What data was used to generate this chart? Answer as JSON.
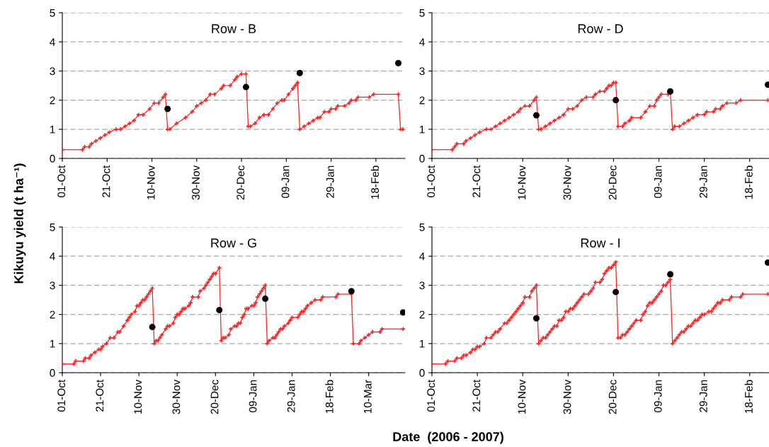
{
  "chart_data": [
    {
      "type": "line",
      "title": "Row - B",
      "ylabel": "Kikuyu yield (t ha⁻¹)",
      "xlim": [
        "2006-10-01",
        "2007-03-03"
      ],
      "ylim": [
        0,
        5
      ],
      "yticks": [
        0,
        1,
        2,
        3,
        4,
        5
      ],
      "grid": "y",
      "xticks": [
        {
          "value": "2006-10-01",
          "label": "01-Oct"
        },
        {
          "value": "2006-10-21",
          "label": "21-Oct"
        },
        {
          "value": "2006-11-10",
          "label": "10-Nov"
        },
        {
          "value": "2006-11-30",
          "label": "30-Nov"
        },
        {
          "value": "2006-12-20",
          "label": "20-Dec"
        },
        {
          "value": "2007-01-09",
          "label": "09-Jan"
        },
        {
          "value": "2007-01-29",
          "label": "29-Jan"
        },
        {
          "value": "2007-02-18",
          "label": "18-Feb"
        }
      ],
      "series": [
        {
          "color": "#ff2020",
          "marker": "cross",
          "x": [
            "2006-10-01",
            "2006-10-10",
            "2006-10-11",
            "2006-10-13",
            "2006-10-14",
            "2006-10-16",
            "2006-10-18",
            "2006-10-20",
            "2006-10-22",
            "2006-10-25",
            "2006-10-27",
            "2006-10-29",
            "2006-10-31",
            "2006-11-02",
            "2006-11-04",
            "2006-11-06",
            "2006-11-09",
            "2006-11-11",
            "2006-11-13",
            "2006-11-15",
            "2006-11-16",
            "2006-11-17",
            "2006-11-18",
            "2006-11-21",
            "2006-11-25",
            "2006-11-28",
            "2006-11-30",
            "2006-12-02",
            "2006-12-04",
            "2006-12-06",
            "2006-12-08",
            "2006-12-11",
            "2006-12-12",
            "2006-12-15",
            "2006-12-17",
            "2006-12-18",
            "2006-12-20",
            "2006-12-22",
            "2006-12-23",
            "2006-12-24",
            "2006-12-26",
            "2006-12-28",
            "2006-12-30",
            "2007-01-01",
            "2007-01-03",
            "2007-01-05",
            "2007-01-07",
            "2007-01-08",
            "2007-01-10",
            "2007-01-12",
            "2007-01-13",
            "2007-01-14",
            "2007-01-15",
            "2007-01-17",
            "2007-01-19",
            "2007-01-21",
            "2007-01-23",
            "2007-01-24",
            "2007-01-26",
            "2007-01-28",
            "2007-01-29",
            "2007-01-31",
            "2007-02-01",
            "2007-02-04",
            "2007-02-06",
            "2007-02-07",
            "2007-02-09",
            "2007-02-10",
            "2007-02-15",
            "2007-02-17",
            "2007-02-28",
            "2007-03-01",
            "2007-03-02"
          ],
          "values": [
            0.3,
            0.3,
            0.4,
            0.4,
            0.5,
            0.6,
            0.7,
            0.8,
            0.9,
            1.0,
            1.0,
            1.1,
            1.2,
            1.3,
            1.5,
            1.5,
            1.7,
            1.9,
            1.9,
            2.1,
            2.2,
            1.0,
            1.0,
            1.2,
            1.4,
            1.6,
            1.8,
            1.9,
            2.0,
            2.2,
            2.2,
            2.4,
            2.5,
            2.5,
            2.7,
            2.8,
            2.9,
            2.9,
            1.1,
            1.1,
            1.2,
            1.4,
            1.5,
            1.5,
            1.7,
            1.9,
            2.0,
            2.0,
            2.2,
            2.4,
            2.5,
            2.6,
            1.0,
            1.1,
            1.2,
            1.3,
            1.4,
            1.4,
            1.6,
            1.6,
            1.7,
            1.7,
            1.8,
            1.8,
            1.9,
            2.0,
            2.0,
            2.1,
            2.1,
            2.2,
            2.2,
            1.0,
            1.0
          ]
        },
        {
          "type": "scatter",
          "color": "#000000",
          "marker": "circle",
          "x": [
            "2006-11-17",
            "2006-12-22",
            "2007-01-15",
            "2007-02-28"
          ],
          "values": [
            1.7,
            2.45,
            2.93,
            3.27
          ]
        }
      ]
    },
    {
      "type": "line",
      "title": "Row - D",
      "xlim": [
        "2006-10-01",
        "2007-02-26T12:00"
      ],
      "ylim": [
        0,
        5
      ],
      "yticks": [
        0,
        1,
        2,
        3,
        4,
        5
      ],
      "grid": "y",
      "xticks": [
        {
          "value": "2006-10-01",
          "label": "01-Oct"
        },
        {
          "value": "2006-10-21",
          "label": "21-Oct"
        },
        {
          "value": "2006-11-10",
          "label": "10-Nov"
        },
        {
          "value": "2006-11-30",
          "label": "30-Nov"
        },
        {
          "value": "2006-12-20",
          "label": "20-Dec"
        },
        {
          "value": "2007-01-09",
          "label": "09-Jan"
        },
        {
          "value": "2007-01-29",
          "label": "29-Jan"
        },
        {
          "value": "2007-02-18",
          "label": "18-Feb"
        }
      ],
      "series": [
        {
          "color": "#ff2020",
          "marker": "cross",
          "x": [
            "2006-10-01",
            "2006-10-10",
            "2006-10-11",
            "2006-10-12",
            "2006-10-15",
            "2006-10-16",
            "2006-10-18",
            "2006-10-20",
            "2006-10-22",
            "2006-10-25",
            "2006-10-27",
            "2006-10-29",
            "2006-10-31",
            "2006-11-02",
            "2006-11-04",
            "2006-11-06",
            "2006-11-08",
            "2006-11-09",
            "2006-11-11",
            "2006-11-13",
            "2006-11-15",
            "2006-11-16",
            "2006-11-17",
            "2006-11-18",
            "2006-11-20",
            "2006-11-22",
            "2006-11-24",
            "2006-11-26",
            "2006-11-28",
            "2006-11-30",
            "2006-12-02",
            "2006-12-04",
            "2006-12-06",
            "2006-12-08",
            "2006-12-11",
            "2006-12-12",
            "2006-12-14",
            "2006-12-16",
            "2006-12-17",
            "2006-12-18",
            "2006-12-19",
            "2006-12-20",
            "2006-12-21",
            "2006-12-22",
            "2006-12-24",
            "2006-12-25",
            "2006-12-27",
            "2006-12-28",
            "2007-01-01",
            "2007-01-03",
            "2007-01-05",
            "2007-01-07",
            "2007-01-08",
            "2007-01-09",
            "2007-01-10",
            "2007-01-13",
            "2007-01-14",
            "2007-01-15",
            "2007-01-16",
            "2007-01-18",
            "2007-01-20",
            "2007-01-22",
            "2007-01-24",
            "2007-01-26",
            "2007-01-29",
            "2007-01-30",
            "2007-02-02",
            "2007-02-03",
            "2007-02-05",
            "2007-02-06",
            "2007-02-08",
            "2007-02-12",
            "2007-02-14",
            "2007-02-26"
          ],
          "values": [
            0.3,
            0.3,
            0.4,
            0.5,
            0.5,
            0.6,
            0.7,
            0.8,
            0.9,
            1.0,
            1.0,
            1.1,
            1.2,
            1.3,
            1.4,
            1.5,
            1.6,
            1.7,
            1.8,
            1.8,
            2.0,
            2.1,
            1.0,
            1.0,
            1.1,
            1.2,
            1.3,
            1.4,
            1.5,
            1.7,
            1.7,
            1.8,
            2.0,
            2.1,
            2.1,
            2.2,
            2.3,
            2.3,
            2.4,
            2.5,
            2.5,
            2.6,
            2.6,
            1.1,
            1.1,
            1.2,
            1.3,
            1.4,
            1.4,
            1.6,
            1.8,
            1.8,
            2.0,
            2.1,
            2.2,
            2.2,
            2.3,
            1.0,
            1.1,
            1.1,
            1.2,
            1.3,
            1.4,
            1.5,
            1.5,
            1.6,
            1.6,
            1.7,
            1.7,
            1.8,
            1.9,
            1.9,
            2.0,
            2.0
          ]
        },
        {
          "type": "scatter",
          "color": "#000000",
          "marker": "circle",
          "x": [
            "2006-11-16",
            "2006-12-21",
            "2007-01-14",
            "2007-02-26"
          ],
          "values": [
            1.48,
            2.0,
            2.3,
            2.53
          ]
        }
      ]
    },
    {
      "type": "line",
      "title": "Row - G",
      "xlabel": "Date  (2006 - 2007)",
      "xlim": [
        "2006-10-01",
        "2007-03-29"
      ],
      "ylim": [
        0,
        5
      ],
      "yticks": [
        0,
        1,
        2,
        3,
        4,
        5
      ],
      "grid": "y",
      "xticks": [
        {
          "value": "2006-10-01",
          "label": "01-Oct"
        },
        {
          "value": "2006-10-21",
          "label": "21-Oct"
        },
        {
          "value": "2006-11-10",
          "label": "10-Nov"
        },
        {
          "value": "2006-11-30",
          "label": "30-Nov"
        },
        {
          "value": "2006-12-20",
          "label": "20-Dec"
        },
        {
          "value": "2007-01-09",
          "label": "09-Jan"
        },
        {
          "value": "2007-01-29",
          "label": "29-Jan"
        },
        {
          "value": "2007-02-18",
          "label": "18-Feb"
        },
        {
          "value": "2007-03-10",
          "label": "10-Mar"
        }
      ],
      "series": [
        {
          "color": "#ff2020",
          "marker": "cross",
          "x": [
            "2006-10-01",
            "2006-10-07",
            "2006-10-08",
            "2006-10-12",
            "2006-10-13",
            "2006-10-15",
            "2006-10-16",
            "2006-10-18",
            "2006-10-20",
            "2006-10-21",
            "2006-10-22",
            "2006-10-24",
            "2006-10-26",
            "2006-10-28",
            "2006-10-30",
            "2006-10-31",
            "2006-11-02",
            "2006-11-04",
            "2006-11-05",
            "2006-11-06",
            "2006-11-08",
            "2006-11-09",
            "2006-11-10",
            "2006-11-11",
            "2006-11-12",
            "2006-11-13",
            "2006-11-14",
            "2006-11-15",
            "2006-11-16",
            "2006-11-17",
            "2006-11-18",
            "2006-11-19",
            "2006-11-20",
            "2006-11-21",
            "2006-11-22",
            "2006-11-24",
            "2006-11-25",
            "2006-11-26",
            "2006-11-28",
            "2006-11-29",
            "2006-11-30",
            "2006-12-01",
            "2006-12-02",
            "2006-12-03",
            "2006-12-04",
            "2006-12-06",
            "2006-12-07",
            "2006-12-08",
            "2006-12-11",
            "2006-12-12",
            "2006-12-14",
            "2006-12-15",
            "2006-12-16",
            "2006-12-17",
            "2006-12-18",
            "2006-12-19",
            "2006-12-20",
            "2006-12-22",
            "2006-12-23",
            "2006-12-24",
            "2006-12-25",
            "2006-12-27",
            "2006-12-28",
            "2006-12-30",
            "2006-12-31",
            "2007-01-01",
            "2007-01-02",
            "2007-01-03",
            "2007-01-04",
            "2007-01-05",
            "2007-01-06",
            "2007-01-08",
            "2007-01-09",
            "2007-01-10",
            "2007-01-11",
            "2007-01-12",
            "2007-01-13",
            "2007-01-14",
            "2007-01-15",
            "2007-01-16",
            "2007-01-17",
            "2007-01-19",
            "2007-01-20",
            "2007-01-21",
            "2007-01-22",
            "2007-01-23",
            "2007-01-24",
            "2007-01-25",
            "2007-01-27",
            "2007-01-28",
            "2007-01-29",
            "2007-02-01",
            "2007-02-02",
            "2007-02-03",
            "2007-02-04",
            "2007-02-05",
            "2007-02-06",
            "2007-02-08",
            "2007-02-10",
            "2007-02-13",
            "2007-02-14",
            "2007-02-21",
            "2007-02-22",
            "2007-03-01",
            "2007-03-02",
            "2007-03-05",
            "2007-03-06",
            "2007-03-08",
            "2007-03-10",
            "2007-03-12",
            "2007-03-16",
            "2007-03-17",
            "2007-03-28"
          ],
          "values": [
            0.3,
            0.3,
            0.4,
            0.4,
            0.5,
            0.5,
            0.6,
            0.7,
            0.8,
            0.8,
            0.9,
            1.0,
            1.2,
            1.2,
            1.4,
            1.4,
            1.6,
            1.8,
            1.9,
            2.0,
            2.1,
            2.3,
            2.3,
            2.4,
            2.5,
            2.5,
            2.6,
            2.7,
            2.8,
            2.9,
            1.0,
            1.1,
            1.1,
            1.2,
            1.3,
            1.5,
            1.6,
            1.6,
            1.7,
            1.9,
            2.0,
            2.0,
            2.1,
            2.2,
            2.2,
            2.3,
            2.4,
            2.6,
            2.6,
            2.8,
            2.9,
            3.0,
            3.1,
            3.2,
            3.3,
            3.4,
            3.4,
            3.6,
            1.1,
            1.2,
            1.2,
            1.3,
            1.5,
            1.6,
            1.6,
            1.7,
            1.7,
            1.9,
            2.0,
            2.2,
            2.2,
            2.3,
            2.3,
            2.4,
            2.6,
            2.7,
            2.8,
            2.9,
            3.0,
            1.0,
            1.1,
            1.2,
            1.2,
            1.3,
            1.4,
            1.5,
            1.5,
            1.6,
            1.7,
            1.8,
            1.9,
            1.9,
            2.0,
            2.1,
            2.1,
            2.2,
            2.3,
            2.4,
            2.5,
            2.5,
            2.6,
            2.6,
            2.7,
            2.7,
            1.0,
            1.0,
            1.1,
            1.2,
            1.3,
            1.4,
            1.4,
            1.5,
            1.5
          ]
        },
        {
          "type": "scatter",
          "color": "#000000",
          "marker": "circle",
          "x": [
            "2006-11-17",
            "2006-12-22",
            "2007-01-15",
            "2007-03-01",
            "2007-03-28"
          ],
          "values": [
            1.57,
            2.15,
            2.54,
            2.8,
            2.07
          ]
        }
      ]
    },
    {
      "type": "line",
      "title": "Row - I",
      "xlim": [
        "2006-10-01",
        "2007-02-26T12:00"
      ],
      "ylim": [
        0,
        5
      ],
      "yticks": [
        0,
        1,
        2,
        3,
        4,
        5
      ],
      "grid": "y",
      "xticks": [
        {
          "value": "2006-10-01",
          "label": "01-Oct"
        },
        {
          "value": "2006-10-21",
          "label": "21-Oct"
        },
        {
          "value": "2006-11-10",
          "label": "10-Nov"
        },
        {
          "value": "2006-11-30",
          "label": "30-Nov"
        },
        {
          "value": "2006-12-20",
          "label": "20-Dec"
        },
        {
          "value": "2007-01-09",
          "label": "09-Jan"
        },
        {
          "value": "2007-01-29",
          "label": "29-Jan"
        },
        {
          "value": "2007-02-18",
          "label": "18-Feb"
        }
      ],
      "series": [
        {
          "color": "#ff2020",
          "marker": "cross",
          "x": [
            "2006-10-01",
            "2006-10-07",
            "2006-10-08",
            "2006-10-11",
            "2006-10-12",
            "2006-10-14",
            "2006-10-15",
            "2006-10-16",
            "2006-10-18",
            "2006-10-19",
            "2006-10-20",
            "2006-10-21",
            "2006-10-22",
            "2006-10-24",
            "2006-10-25",
            "2006-10-27",
            "2006-10-28",
            "2006-10-29",
            "2006-10-30",
            "2006-10-31",
            "2006-11-02",
            "2006-11-03",
            "2006-11-04",
            "2006-11-05",
            "2006-11-06",
            "2006-11-07",
            "2006-11-08",
            "2006-11-09",
            "2006-11-10",
            "2006-11-11",
            "2006-11-13",
            "2006-11-14",
            "2006-11-15",
            "2006-11-16",
            "2006-11-17",
            "2006-11-18",
            "2006-11-19",
            "2006-11-20",
            "2006-11-21",
            "2006-11-22",
            "2006-11-23",
            "2006-11-24",
            "2006-11-25",
            "2006-11-26",
            "2006-11-27",
            "2006-11-28",
            "2006-11-29",
            "2006-11-30",
            "2006-12-01",
            "2006-12-02",
            "2006-12-03",
            "2006-12-04",
            "2006-12-05",
            "2006-12-06",
            "2006-12-07",
            "2006-12-09",
            "2006-12-10",
            "2006-12-11",
            "2006-12-12",
            "2006-12-14",
            "2006-12-15",
            "2006-12-16",
            "2006-12-17",
            "2006-12-18",
            "2006-12-19",
            "2006-12-20",
            "2006-12-21",
            "2006-12-22",
            "2006-12-23",
            "2006-12-24",
            "2006-12-25",
            "2006-12-26",
            "2006-12-27",
            "2006-12-28",
            "2006-12-29",
            "2006-12-30",
            "2007-01-01",
            "2007-01-02",
            "2007-01-03",
            "2007-01-04",
            "2007-01-05",
            "2007-01-06",
            "2007-01-07",
            "2007-01-08",
            "2007-01-09",
            "2007-01-10",
            "2007-01-11",
            "2007-01-12",
            "2007-01-13",
            "2007-01-14",
            "2007-01-15",
            "2007-01-16",
            "2007-01-17",
            "2007-01-18",
            "2007-01-19",
            "2007-01-20",
            "2007-01-21",
            "2007-01-22",
            "2007-01-23",
            "2007-01-24",
            "2007-01-25",
            "2007-01-26",
            "2007-01-27",
            "2007-01-28",
            "2007-01-29",
            "2007-01-31",
            "2007-02-01",
            "2007-02-02",
            "2007-02-03",
            "2007-02-04",
            "2007-02-05",
            "2007-02-06",
            "2007-02-09",
            "2007-02-10",
            "2007-02-14",
            "2007-02-15",
            "2007-02-26"
          ],
          "values": [
            0.3,
            0.3,
            0.4,
            0.4,
            0.5,
            0.5,
            0.6,
            0.6,
            0.7,
            0.8,
            0.8,
            0.9,
            0.9,
            1.0,
            1.2,
            1.2,
            1.3,
            1.4,
            1.4,
            1.5,
            1.7,
            1.7,
            1.8,
            1.9,
            2.0,
            2.1,
            2.2,
            2.3,
            2.4,
            2.6,
            2.6,
            2.8,
            2.9,
            3.0,
            1.0,
            1.1,
            1.2,
            1.2,
            1.3,
            1.4,
            1.5,
            1.6,
            1.6,
            1.8,
            1.8,
            1.9,
            2.1,
            2.1,
            2.2,
            2.2,
            2.3,
            2.4,
            2.5,
            2.6,
            2.7,
            2.7,
            2.8,
            2.9,
            3.1,
            3.1,
            3.2,
            3.4,
            3.5,
            3.6,
            3.6,
            3.7,
            3.8,
            1.2,
            1.2,
            1.3,
            1.3,
            1.4,
            1.5,
            1.6,
            1.7,
            1.8,
            1.8,
            2.0,
            2.1,
            2.3,
            2.4,
            2.4,
            2.5,
            2.6,
            2.7,
            2.8,
            3.0,
            3.0,
            3.1,
            3.2,
            1.0,
            1.1,
            1.2,
            1.3,
            1.4,
            1.4,
            1.5,
            1.6,
            1.6,
            1.7,
            1.8,
            1.8,
            1.9,
            2.0,
            2.0,
            2.1,
            2.1,
            2.2,
            2.3,
            2.4,
            2.4,
            2.5,
            2.5,
            2.6,
            2.6,
            2.7,
            2.7
          ]
        },
        {
          "type": "scatter",
          "color": "#000000",
          "marker": "circle",
          "x": [
            "2006-11-16",
            "2006-12-21",
            "2007-01-14",
            "2007-02-26"
          ],
          "values": [
            1.87,
            2.77,
            3.38,
            3.78
          ]
        }
      ]
    }
  ]
}
